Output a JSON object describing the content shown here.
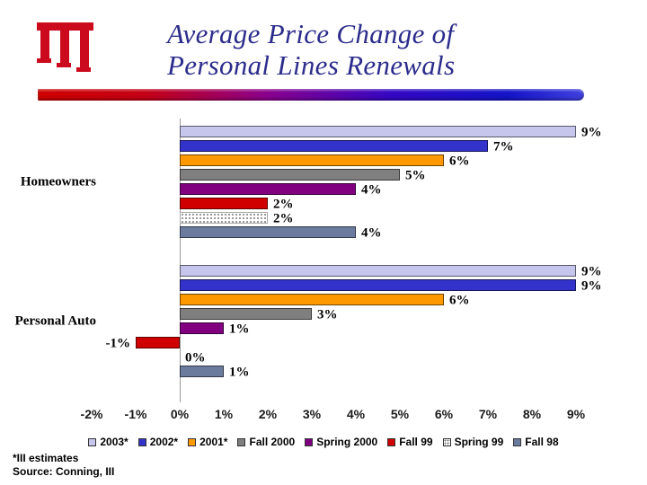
{
  "slide": {
    "title": {
      "line1": "Average Price Change of",
      "line2": "Personal Lines Renewals"
    },
    "footnotes": {
      "estimates": "*III estimates",
      "source": "Source: Conning, III"
    },
    "logo": "iii-logo",
    "accent_colors": {
      "title_text": "#2c2c8c",
      "divider_left": "#cf0000",
      "divider_right": "#1414c8",
      "logo_red": "#cc0a1e"
    }
  },
  "chart_data": {
    "type": "bar",
    "orientation": "horizontal",
    "title": "Average Price Change of Personal Lines Renewals",
    "categories": [
      "Homeowners",
      "Personal Auto"
    ],
    "series": [
      {
        "name": "2003*",
        "color": "#c6c6ec",
        "values": [
          9,
          9
        ]
      },
      {
        "name": "2002*",
        "color": "#3333cc",
        "values": [
          7,
          9
        ]
      },
      {
        "name": "2001*",
        "color": "#ff9900",
        "values": [
          6,
          6
        ]
      },
      {
        "name": "Fall 2000",
        "color": "#7f7f7f",
        "values": [
          5,
          3
        ]
      },
      {
        "name": "Spring 2000",
        "color": "#800080",
        "values": [
          4,
          1
        ]
      },
      {
        "name": "Fall 99",
        "color": "#d00000",
        "values": [
          2,
          -1
        ]
      },
      {
        "name": "Spring 99",
        "color": "#ffffff",
        "pattern": "dotted",
        "values": [
          2,
          0
        ]
      },
      {
        "name": "Fall 98",
        "color": "#6b7b9d",
        "values": [
          4,
          1
        ]
      }
    ],
    "x_ticks": [
      "-2%",
      "-1%",
      "0%",
      "1%",
      "2%",
      "3%",
      "4%",
      "5%",
      "6%",
      "7%",
      "8%",
      "9%"
    ],
    "xlim": [
      -2,
      9
    ],
    "value_label_format": "{v}%",
    "legend_position": "bottom",
    "grid": false
  }
}
